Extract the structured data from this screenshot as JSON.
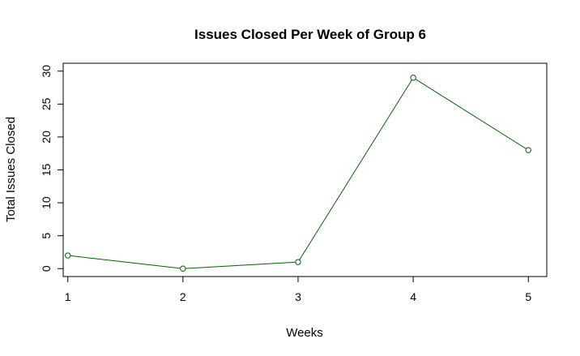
{
  "chart_data": {
    "type": "line",
    "title": "Issues Closed Per Week of Group 6",
    "xlabel": "Weeks",
    "ylabel": "Total Issues Closed",
    "x": [
      1,
      2,
      3,
      4,
      5
    ],
    "series": [
      {
        "values": [
          2,
          0,
          1,
          29,
          18
        ]
      }
    ],
    "xticks": [
      "1",
      "2",
      "3",
      "4",
      "5"
    ],
    "yticks": [
      "0",
      "5",
      "10",
      "15",
      "20",
      "25",
      "30"
    ],
    "xlim": [
      0.96,
      5.16
    ],
    "ylim": [
      -1.2,
      31.2
    ],
    "line_color": "#006400",
    "marker": "open-circle",
    "grid": false,
    "legend": "none"
  }
}
